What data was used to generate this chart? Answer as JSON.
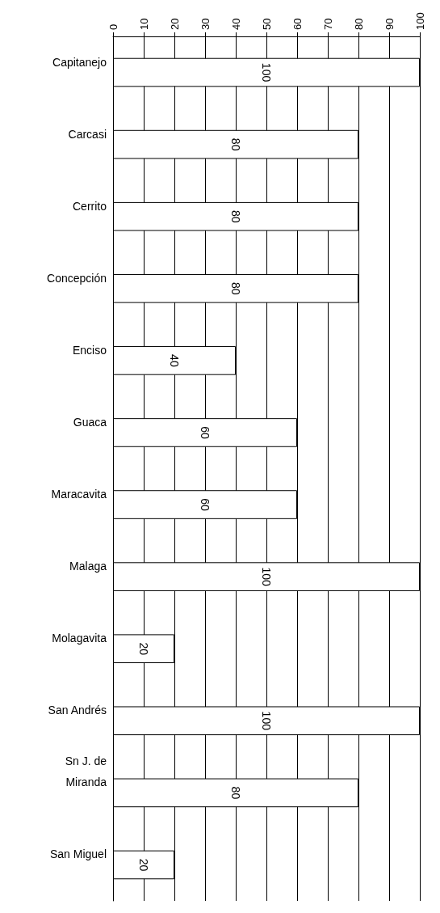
{
  "chart_data": {
    "type": "bar",
    "orientation": "horizontal",
    "categories": [
      "Capitanejo",
      "Carcasi",
      "Cerrito",
      "Concepción",
      "Enciso",
      "Guaca",
      "Maracavita",
      "Malaga",
      "Molagavita",
      "San Andrés",
      "Sn J. de\nMiranda",
      "San Miguel"
    ],
    "values": [
      100,
      80,
      80,
      80,
      40,
      60,
      60,
      100,
      20,
      100,
      80,
      20
    ],
    "color": "#ffffff",
    "xlim": [
      0,
      100
    ],
    "xticks": [
      0,
      10,
      20,
      30,
      40,
      50,
      60,
      70,
      80,
      90,
      100
    ],
    "grid": "x",
    "data_labels": true
  }
}
